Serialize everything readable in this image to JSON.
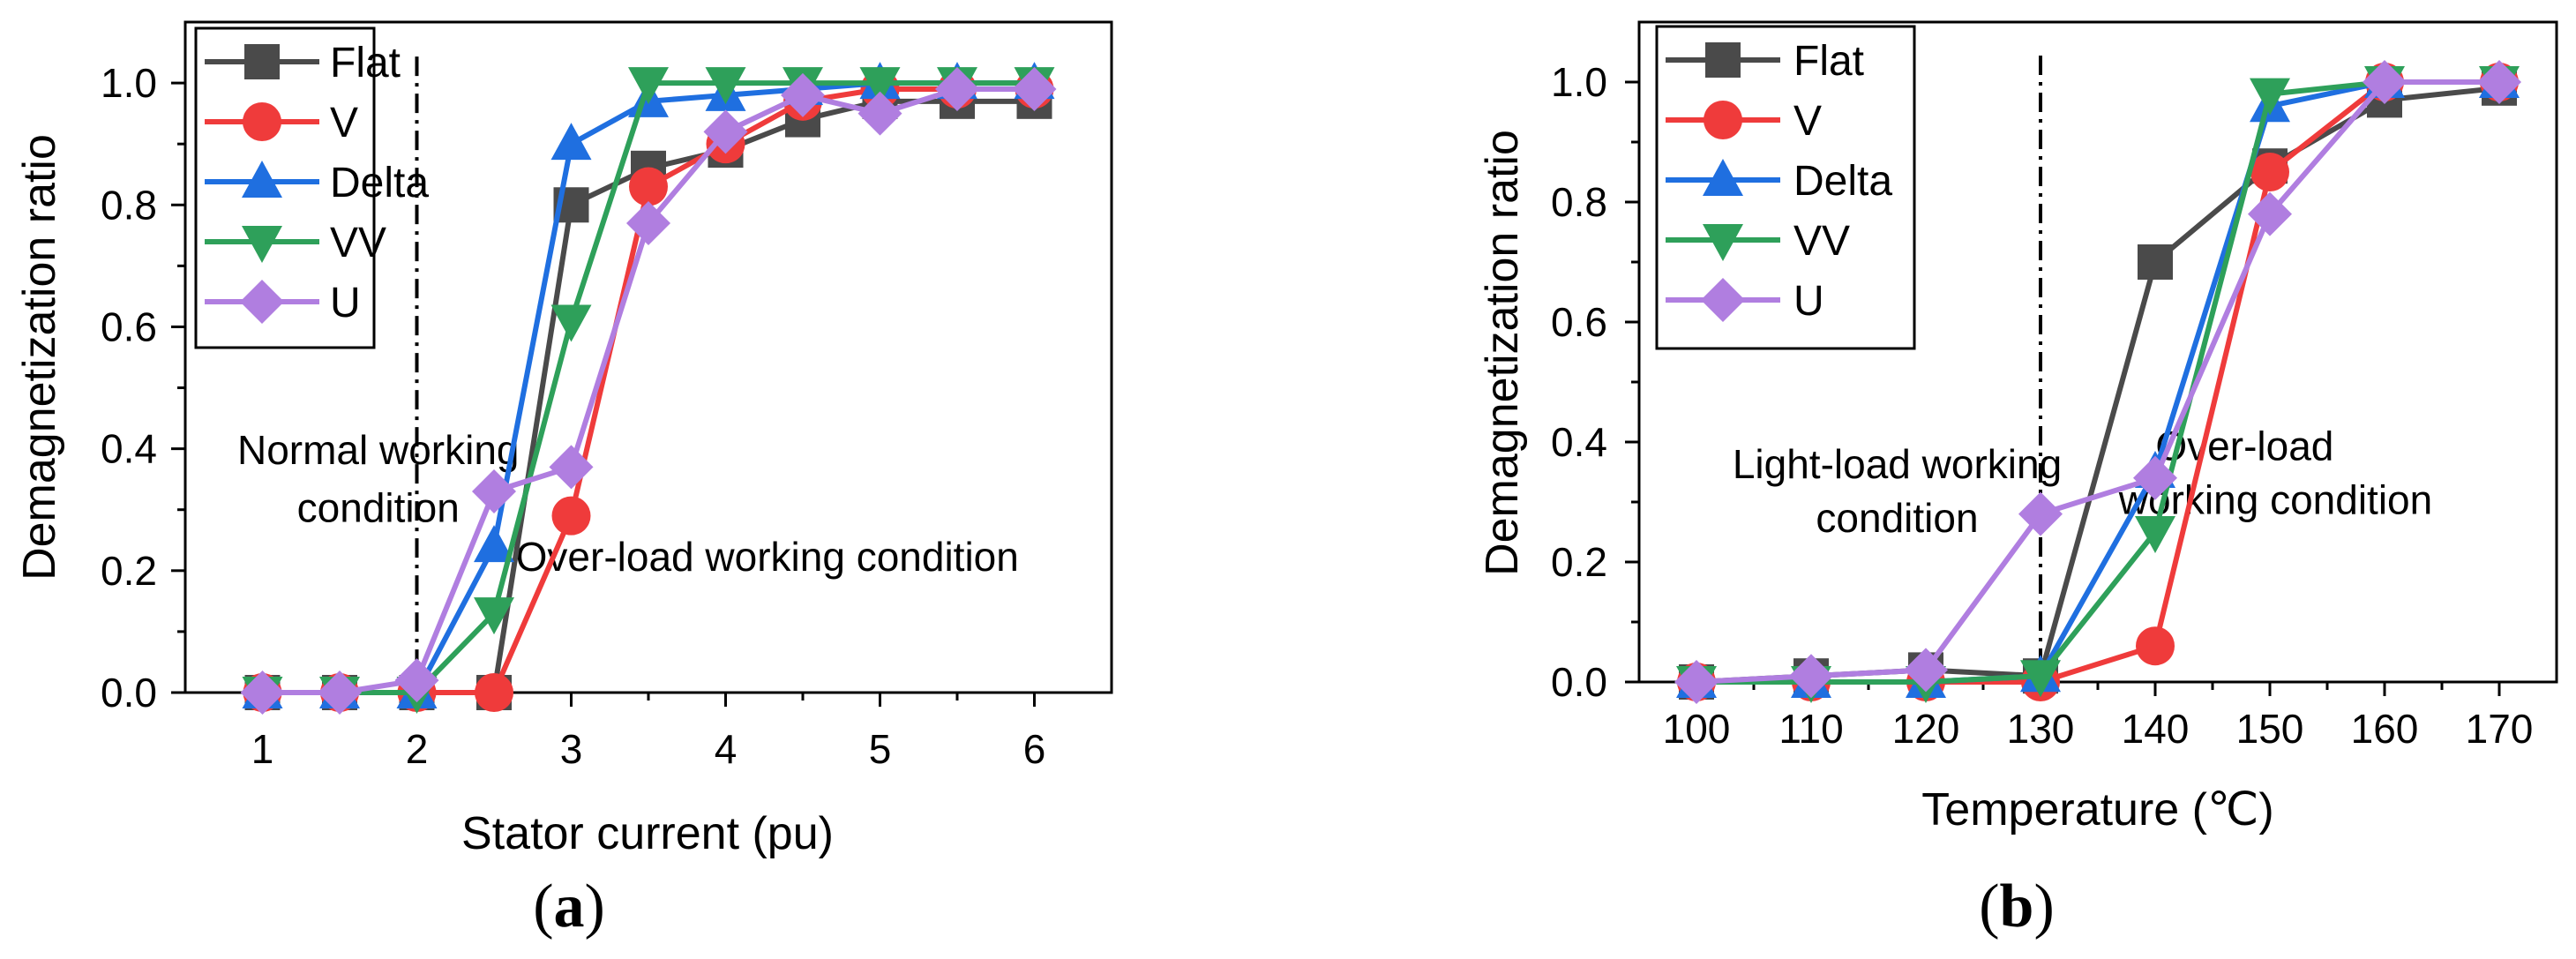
{
  "chart_data": [
    {
      "type": "line",
      "panel_label": "a",
      "xlabel": "Stator current (pu)",
      "ylabel": "Demagnetization ratio",
      "xlim": [
        0.5,
        6.5
      ],
      "ylim": [
        0,
        1.1
      ],
      "xticks": [
        1,
        2,
        3,
        4,
        5,
        6
      ],
      "yticks": [
        0.0,
        0.2,
        0.4,
        0.6,
        0.8,
        1.0
      ],
      "ytick_labels": [
        "0.0",
        "0.2",
        "0.4",
        "0.6",
        "0.8",
        "1.0"
      ],
      "x": [
        1,
        1.5,
        2,
        2.5,
        3,
        3.5,
        4,
        4.5,
        5,
        5.5,
        6
      ],
      "divider_x": 2,
      "legend_position": "top-left",
      "annotations": [
        {
          "text": "Normal working",
          "x": 1.75,
          "y": 0.375
        },
        {
          "text": "condition",
          "x": 1.75,
          "y": 0.28
        },
        {
          "text": "Over-load working condition",
          "x": 4.27,
          "y": 0.2
        }
      ],
      "series": [
        {
          "name": "Flat",
          "color": "#4a4a4a",
          "marker": "square",
          "values": [
            0,
            0,
            0,
            0,
            0.8,
            0.86,
            0.89,
            0.94,
            0.97,
            0.97,
            0.97
          ]
        },
        {
          "name": "V",
          "color": "#ef3b3b",
          "marker": "circle",
          "values": [
            0,
            0,
            0,
            0,
            0.29,
            0.83,
            0.9,
            0.97,
            0.99,
            0.99,
            0.99
          ]
        },
        {
          "name": "Delta",
          "color": "#1f6fe0",
          "marker": "triangle-up",
          "values": [
            0,
            0,
            0,
            0.24,
            0.9,
            0.97,
            0.98,
            0.99,
            1.0,
            1.0,
            1.0
          ]
        },
        {
          "name": "VV",
          "color": "#2ea05a",
          "marker": "triangle-down",
          "values": [
            0,
            0,
            0,
            0.13,
            0.61,
            1.0,
            1.0,
            1.0,
            1.0,
            1.0,
            1.0
          ]
        },
        {
          "name": "U",
          "color": "#b07ee0",
          "marker": "diamond",
          "values": [
            0,
            0,
            0.02,
            0.33,
            0.37,
            0.77,
            0.92,
            0.98,
            0.95,
            0.99,
            0.99
          ]
        }
      ]
    },
    {
      "type": "line",
      "panel_label": "b",
      "xlabel": "Temperature (℃)",
      "ylabel": "Demagnetization ratio",
      "xlim": [
        95,
        175
      ],
      "ylim": [
        0,
        1.1
      ],
      "xticks": [
        100,
        110,
        120,
        130,
        140,
        150,
        160,
        170
      ],
      "yticks": [
        0.0,
        0.2,
        0.4,
        0.6,
        0.8,
        1.0
      ],
      "ytick_labels": [
        "0.0",
        "0.2",
        "0.4",
        "0.6",
        "0.8",
        "1.0"
      ],
      "x": [
        100,
        110,
        120,
        130,
        140,
        150,
        160,
        170
      ],
      "divider_x": 130,
      "legend_position": "top-left",
      "annotations": [
        {
          "text": "Light-load working",
          "x": 117.5,
          "y": 0.34
        },
        {
          "text": "condition",
          "x": 117.5,
          "y": 0.25
        },
        {
          "text": "Over-load",
          "x": 147.8,
          "y": 0.37
        },
        {
          "text": "working condition",
          "x": 150.5,
          "y": 0.28
        }
      ],
      "series": [
        {
          "name": "Flat",
          "color": "#4a4a4a",
          "marker": "square",
          "values": [
            0,
            0.01,
            0.02,
            0.01,
            0.7,
            0.86,
            0.97,
            0.99
          ]
        },
        {
          "name": "V",
          "color": "#ef3b3b",
          "marker": "circle",
          "values": [
            0,
            0,
            0,
            0,
            0.06,
            0.85,
            1.0,
            1.0
          ]
        },
        {
          "name": "Delta",
          "color": "#1f6fe0",
          "marker": "triangle-up",
          "values": [
            0,
            0,
            0,
            0.01,
            0.35,
            0.96,
            1.0,
            1.0
          ]
        },
        {
          "name": "VV",
          "color": "#2ea05a",
          "marker": "triangle-down",
          "values": [
            0,
            0,
            0,
            0.01,
            0.25,
            0.98,
            1.0,
            1.0
          ]
        },
        {
          "name": "U",
          "color": "#b07ee0",
          "marker": "diamond",
          "values": [
            0,
            0.01,
            0.02,
            0.28,
            0.34,
            0.78,
            1.0,
            1.0
          ]
        }
      ]
    }
  ]
}
